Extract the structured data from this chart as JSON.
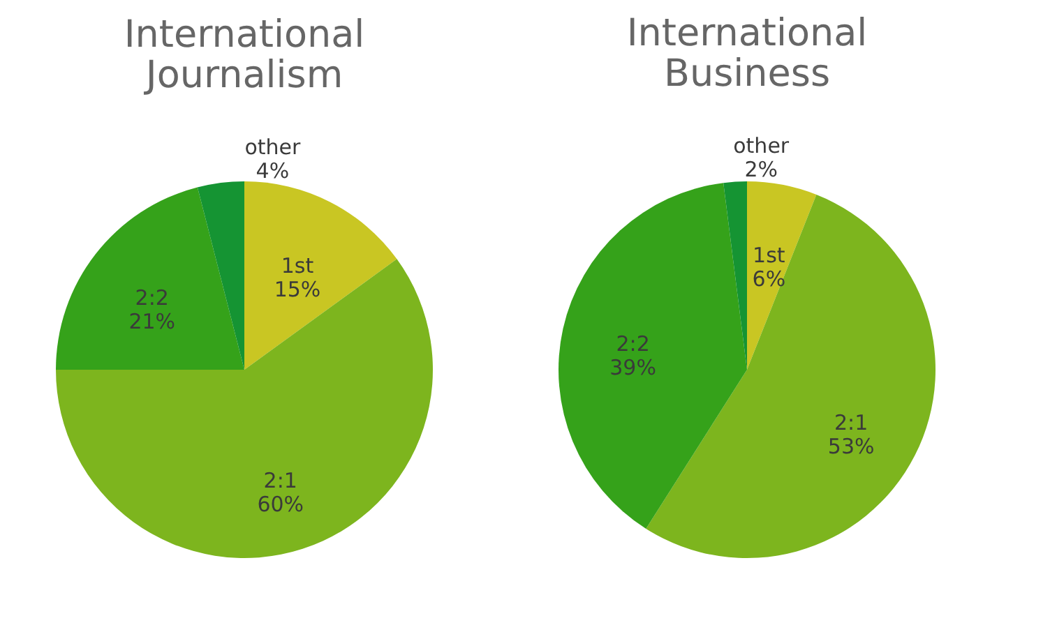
{
  "chart_data": [
    {
      "type": "pie",
      "title": "International Journalism",
      "categories": [
        "1st",
        "2:1",
        "2:2",
        "other"
      ],
      "values": [
        15,
        60,
        21,
        4
      ],
      "value_labels": [
        "15%",
        "60%",
        "21%",
        "4%"
      ],
      "colors": [
        "#c9c623",
        "#7db51e",
        "#35a21a",
        "#159433"
      ],
      "legend": false
    },
    {
      "type": "pie",
      "title": "International Business",
      "categories": [
        "1st",
        "2:1",
        "2:2",
        "other"
      ],
      "values": [
        6,
        53,
        39,
        2
      ],
      "value_labels": [
        "6%",
        "53%",
        "39%",
        "2%"
      ],
      "colors": [
        "#c9c623",
        "#7db51e",
        "#35a21a",
        "#159433"
      ],
      "legend": false
    }
  ]
}
